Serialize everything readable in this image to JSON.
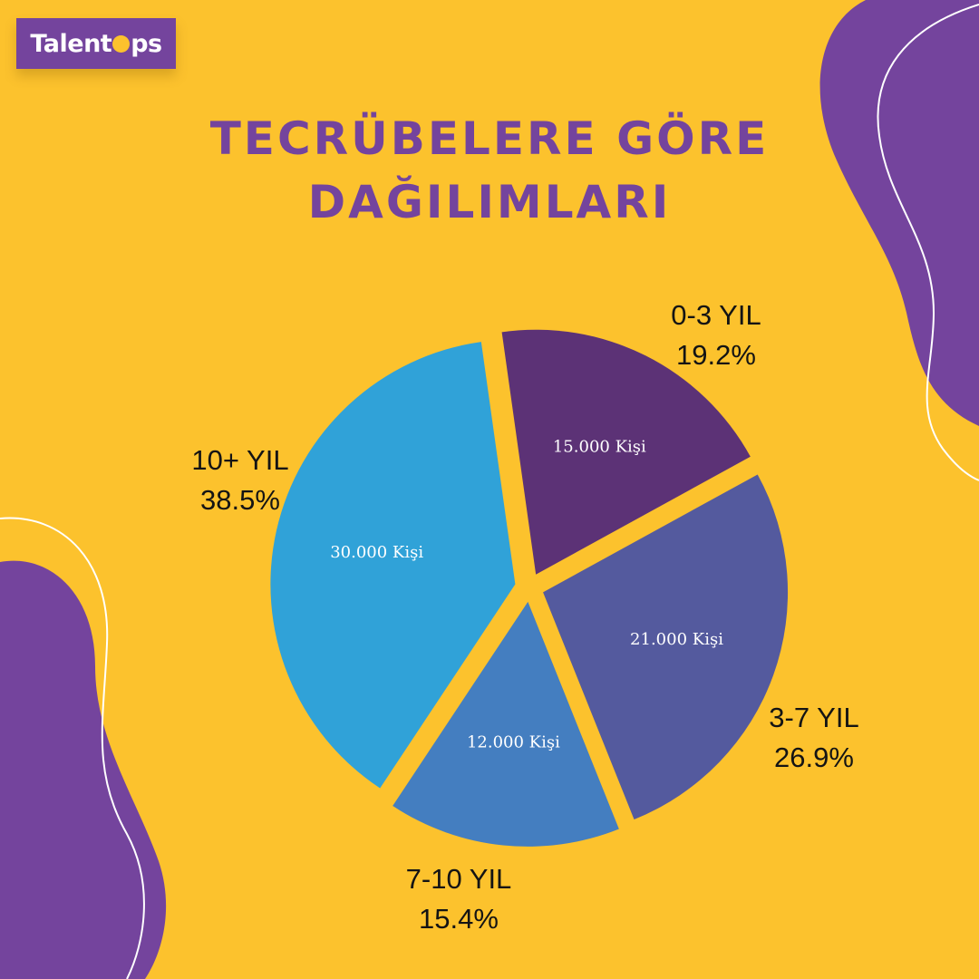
{
  "brand": {
    "logo_before": "Talent",
    "logo_after": "ps",
    "purple": "#74449d",
    "yellow": "#fcc22d"
  },
  "title_lines": [
    "TECRÜBELERE GÖRE",
    "DAĞILIMLARI"
  ],
  "chart_data": {
    "type": "pie",
    "title": "TECRÜBELERE GÖRE DAĞILIMLARI",
    "unit": "Kişi",
    "slices": [
      {
        "label": "0-3 YIL",
        "value": 15000,
        "value_label": "15.000 Kişi",
        "percent_label": "19.2%",
        "color": "#5c3276"
      },
      {
        "label": "3-7 YIL",
        "value": 21000,
        "value_label": "21.000 Kişi",
        "percent_label": "26.9%",
        "color": "#545a9e"
      },
      {
        "label": "7-10 YIL",
        "value": 12000,
        "value_label": "12.000 Kişi",
        "percent_label": "15.4%",
        "color": "#447ec0"
      },
      {
        "label": "10+ YIL",
        "value": 30000,
        "value_label": "30.000 Kişi",
        "percent_label": "38.5%",
        "color": "#30a2d8"
      }
    ]
  }
}
